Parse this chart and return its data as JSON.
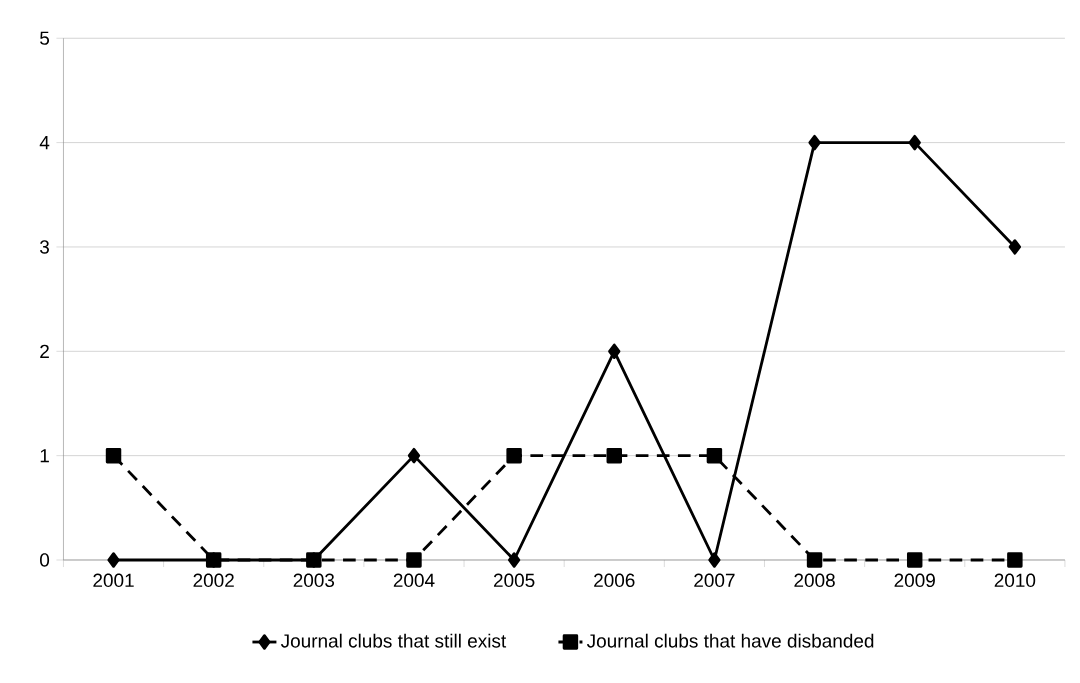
{
  "chart_data": {
    "type": "line",
    "categories": [
      "2001",
      "2002",
      "2003",
      "2004",
      "2005",
      "2006",
      "2007",
      "2008",
      "2009",
      "2010"
    ],
    "series": [
      {
        "name": "Journal clubs that still exist",
        "color": "#000000",
        "values": [
          0,
          0,
          0,
          1,
          0,
          2,
          0,
          4,
          4,
          3
        ],
        "marker": "diamond",
        "line_style": "solid"
      },
      {
        "name": "Journal clubs that have disbanded",
        "color": "#000000",
        "values": [
          1,
          0,
          0,
          0,
          1,
          1,
          1,
          0,
          0,
          0
        ],
        "marker": "square",
        "line_style": "dashed"
      }
    ],
    "ylim": [
      0,
      5
    ],
    "yticks": [
      0,
      1,
      2,
      3,
      4,
      5
    ],
    "grid": "y",
    "legend": "bottom"
  }
}
